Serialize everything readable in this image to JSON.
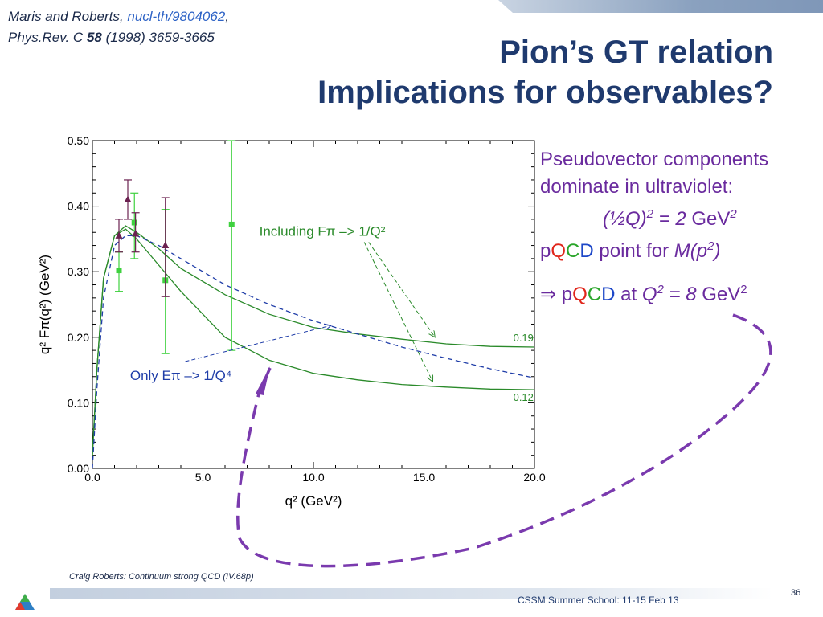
{
  "citation": {
    "authors": "Maris and Roberts,",
    "arxiv": "nucl-th/9804062",
    "journal_prefix": "Phys.Rev. C",
    "volume": "58",
    "journal_suffix": "(1998) 3659-3665"
  },
  "title": {
    "line1": "Pion’s GT relation",
    "line2": "Implications for observables?"
  },
  "chart_data": {
    "type": "line",
    "xlabel": "q² (GeV²)",
    "ylabel": "q² Fπ(q²) (GeV²)",
    "xlim": [
      0.0,
      20.0
    ],
    "ylim": [
      0.0,
      0.5
    ],
    "x_ticks": [
      "0.0",
      "5.0",
      "10.0",
      "15.0",
      "20.0"
    ],
    "y_ticks": [
      "0.00",
      "0.10",
      "0.20",
      "0.30",
      "0.40",
      "0.50"
    ],
    "x_tick_values": [
      0,
      5,
      10,
      15,
      20
    ],
    "y_tick_values": [
      0,
      0.1,
      0.2,
      0.3,
      0.4,
      0.5
    ],
    "series": [
      {
        "style": "solid",
        "color": "#2a8a2a",
        "x": [
          0,
          0.2,
          0.5,
          1.0,
          1.5,
          2.0,
          3.0,
          4.0,
          5.0,
          6.0,
          8.0,
          10.0,
          12.0,
          14.0,
          16.0,
          18.0,
          20.0
        ],
        "y": [
          0.02,
          0.15,
          0.29,
          0.355,
          0.37,
          0.36,
          0.335,
          0.305,
          0.285,
          0.265,
          0.235,
          0.215,
          0.205,
          0.197,
          0.19,
          0.186,
          0.185
        ]
      },
      {
        "style": "solid",
        "color": "#2a8a2a",
        "x": [
          0,
          0.2,
          0.5,
          1.0,
          1.5,
          2.0,
          3.0,
          4.0,
          5.0,
          6.0,
          8.0,
          10.0,
          12.0,
          14.0,
          16.0,
          18.0,
          20.0
        ],
        "y": [
          0.02,
          0.15,
          0.29,
          0.355,
          0.365,
          0.35,
          0.31,
          0.27,
          0.235,
          0.2,
          0.165,
          0.145,
          0.135,
          0.128,
          0.124,
          0.121,
          0.12
        ]
      },
      {
        "style": "dashed",
        "color": "#1f3da8",
        "x": [
          0,
          0.2,
          0.5,
          1.0,
          1.5,
          2.0,
          3.0,
          4.0,
          5.0,
          6.0,
          8.0,
          10.0,
          12.0,
          14.0,
          16.0,
          18.0,
          20.0
        ],
        "y": [
          0.0,
          0.12,
          0.26,
          0.34,
          0.355,
          0.355,
          0.34,
          0.32,
          0.3,
          0.28,
          0.25,
          0.225,
          0.205,
          0.185,
          0.168,
          0.152,
          0.138
        ]
      }
    ],
    "points_green": [
      {
        "x": 1.2,
        "y": 0.302,
        "lo": 0.27,
        "hi": 0.33
      },
      {
        "x": 1.9,
        "y": 0.375,
        "lo": 0.32,
        "hi": 0.42
      },
      {
        "x": 3.3,
        "y": 0.287,
        "lo": 0.175,
        "hi": 0.395
      },
      {
        "x": 6.3,
        "y": 0.372,
        "lo": 0.18,
        "hi": 0.5
      }
    ],
    "points_purple": [
      {
        "x": 1.2,
        "y": 0.355,
        "lo": 0.33,
        "hi": 0.38
      },
      {
        "x": 1.6,
        "y": 0.41,
        "lo": 0.38,
        "hi": 0.44
      },
      {
        "x": 1.95,
        "y": 0.358,
        "lo": 0.33,
        "hi": 0.39
      },
      {
        "x": 3.3,
        "y": 0.34,
        "lo": 0.262,
        "hi": 0.413
      }
    ],
    "annotations": {
      "including": "Including Fπ –> 1/Q²",
      "only": "Only Eπ –> 1/Q⁴",
      "v019": "0.19",
      "v012": "0.12"
    }
  },
  "panel": {
    "line1": "Pseudovector components",
    "line2": "dominate in ultraviolet:",
    "eq1_a": "(½Q)",
    "eq1_b": "2",
    "eq1_c": " = 2 ",
    "eq1_d": "GeV",
    "eq1_e": "2",
    "p": "p",
    "Q": "Q",
    "C": "C",
    "D": "D",
    "point_for": " point for ",
    "m_of_p": "M(p",
    "m_sup": "2",
    "m_close": ")",
    "implies": "⇒ ",
    "at": " at ",
    "q2": "Q",
    "q2_sup": "2",
    "eq2_val": " = 8 ",
    "eq2_unit": "GeV",
    "eq2_sup": "2"
  },
  "footer": {
    "credit": "Craig Roberts: Continuum strong QCD (IV.68p)",
    "school": "CSSM Summer School: 11-15 Feb 13",
    "page": "36"
  },
  "colors": {
    "title": "#1f3a6e",
    "panel_text": "#6a2b9e",
    "loop": "#7a3aae"
  }
}
